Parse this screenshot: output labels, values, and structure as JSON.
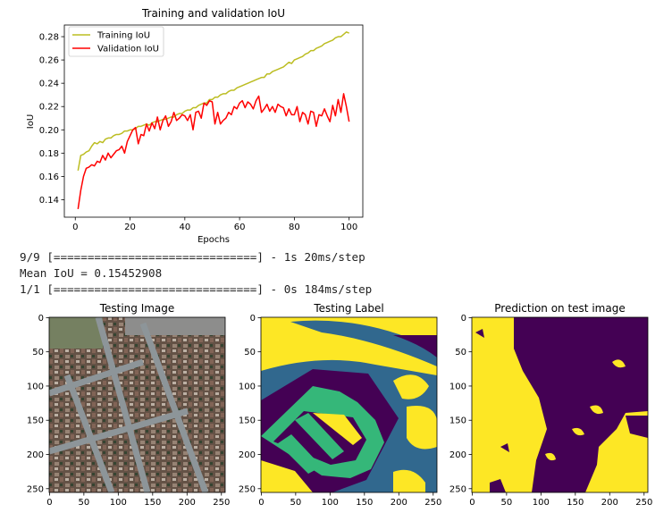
{
  "console": {
    "line1": "9/9 [==============================] - 1s 20ms/step",
    "line2": "Mean IoU = 0.15452908",
    "line3": "1/1 [==============================] - 0s 184ms/step"
  },
  "chart_data": [
    {
      "type": "line",
      "title": "Training and validation IoU",
      "xlabel": "Epochs",
      "ylabel": "IoU",
      "xlim": [
        -4,
        105
      ],
      "ylim": [
        0.125,
        0.29
      ],
      "xticks": [
        0,
        20,
        40,
        60,
        80,
        100
      ],
      "yticks": [
        0.14,
        0.16,
        0.18,
        0.2,
        0.22,
        0.24,
        0.26,
        0.28
      ],
      "grid": false,
      "legend": "top-left",
      "series": [
        {
          "name": "Training IoU",
          "color": "#bcbd22",
          "x": [
            1,
            2,
            3,
            4,
            5,
            6,
            7,
            8,
            9,
            10,
            11,
            12,
            13,
            14,
            15,
            16,
            17,
            18,
            19,
            20,
            21,
            22,
            23,
            24,
            25,
            26,
            27,
            28,
            29,
            30,
            31,
            32,
            33,
            34,
            35,
            36,
            37,
            38,
            39,
            40,
            41,
            42,
            43,
            44,
            45,
            46,
            47,
            48,
            49,
            50,
            51,
            52,
            53,
            54,
            55,
            56,
            57,
            58,
            59,
            60,
            61,
            62,
            63,
            64,
            65,
            66,
            67,
            68,
            69,
            70,
            71,
            72,
            73,
            74,
            75,
            76,
            77,
            78,
            79,
            80,
            81,
            82,
            83,
            84,
            85,
            86,
            87,
            88,
            89,
            90,
            91,
            92,
            93,
            94,
            95,
            96,
            97,
            98,
            99,
            100
          ],
          "values": [
            0.165,
            0.178,
            0.179,
            0.181,
            0.182,
            0.186,
            0.189,
            0.188,
            0.19,
            0.189,
            0.192,
            0.193,
            0.193,
            0.195,
            0.196,
            0.196,
            0.197,
            0.199,
            0.199,
            0.2,
            0.2,
            0.201,
            0.203,
            0.203,
            0.204,
            0.205,
            0.204,
            0.206,
            0.207,
            0.207,
            0.208,
            0.209,
            0.209,
            0.21,
            0.211,
            0.211,
            0.213,
            0.214,
            0.214,
            0.216,
            0.217,
            0.217,
            0.219,
            0.219,
            0.221,
            0.222,
            0.223,
            0.223,
            0.226,
            0.226,
            0.228,
            0.228,
            0.23,
            0.231,
            0.231,
            0.233,
            0.234,
            0.234,
            0.236,
            0.237,
            0.238,
            0.239,
            0.24,
            0.241,
            0.242,
            0.243,
            0.244,
            0.245,
            0.245,
            0.248,
            0.248,
            0.25,
            0.251,
            0.252,
            0.253,
            0.254,
            0.256,
            0.258,
            0.257,
            0.26,
            0.261,
            0.262,
            0.263,
            0.265,
            0.266,
            0.268,
            0.268,
            0.27,
            0.271,
            0.272,
            0.274,
            0.275,
            0.276,
            0.277,
            0.279,
            0.28,
            0.28,
            0.282,
            0.284,
            0.283
          ]
        },
        {
          "name": "Validation IoU",
          "color": "#ff0000",
          "x": [
            1,
            2,
            3,
            4,
            5,
            6,
            7,
            8,
            9,
            10,
            11,
            12,
            13,
            14,
            15,
            16,
            17,
            18,
            19,
            20,
            21,
            22,
            23,
            24,
            25,
            26,
            27,
            28,
            29,
            30,
            31,
            32,
            33,
            34,
            35,
            36,
            37,
            38,
            39,
            40,
            41,
            42,
            43,
            44,
            45,
            46,
            47,
            48,
            49,
            50,
            51,
            52,
            53,
            54,
            55,
            56,
            57,
            58,
            59,
            60,
            61,
            62,
            63,
            64,
            65,
            66,
            67,
            68,
            69,
            70,
            71,
            72,
            73,
            74,
            75,
            76,
            77,
            78,
            79,
            80,
            81,
            82,
            83,
            84,
            85,
            86,
            87,
            88,
            89,
            90,
            91,
            92,
            93,
            94,
            95,
            96,
            97,
            98,
            99,
            100
          ],
          "values": [
            0.132,
            0.148,
            0.16,
            0.167,
            0.168,
            0.17,
            0.169,
            0.173,
            0.172,
            0.178,
            0.174,
            0.18,
            0.176,
            0.179,
            0.182,
            0.183,
            0.186,
            0.18,
            0.19,
            0.195,
            0.2,
            0.202,
            0.188,
            0.196,
            0.195,
            0.205,
            0.199,
            0.206,
            0.201,
            0.211,
            0.2,
            0.208,
            0.212,
            0.203,
            0.207,
            0.215,
            0.208,
            0.21,
            0.213,
            0.212,
            0.208,
            0.213,
            0.2,
            0.215,
            0.216,
            0.21,
            0.223,
            0.221,
            0.225,
            0.224,
            0.205,
            0.215,
            0.205,
            0.208,
            0.21,
            0.215,
            0.213,
            0.22,
            0.218,
            0.223,
            0.225,
            0.219,
            0.224,
            0.222,
            0.218,
            0.225,
            0.229,
            0.215,
            0.218,
            0.222,
            0.216,
            0.22,
            0.215,
            0.222,
            0.22,
            0.219,
            0.212,
            0.218,
            0.213,
            0.213,
            0.22,
            0.207,
            0.215,
            0.213,
            0.205,
            0.216,
            0.215,
            0.203,
            0.213,
            0.212,
            0.218,
            0.212,
            0.207,
            0.221,
            0.212,
            0.226,
            0.215,
            0.231,
            0.22,
            0.207
          ]
        }
      ]
    },
    {
      "type": "heatmap",
      "title": "Testing Image",
      "xticks": [
        0,
        50,
        100,
        150,
        200,
        250
      ],
      "yticks": [
        0,
        50,
        100,
        150,
        200,
        250
      ],
      "xlim": [
        0,
        256
      ],
      "ylim": [
        256,
        0
      ]
    },
    {
      "type": "heatmap",
      "title": "Testing Label",
      "xticks": [
        0,
        50,
        100,
        150,
        200,
        250
      ],
      "yticks": [
        0,
        50,
        100,
        150,
        200,
        250
      ],
      "xlim": [
        0,
        256
      ],
      "ylim": [
        256,
        0
      ],
      "colors": [
        "#440154",
        "#31688e",
        "#35b779",
        "#fde725"
      ]
    },
    {
      "type": "heatmap",
      "title": "Prediction on test image",
      "xticks": [
        0,
        50,
        100,
        150,
        200,
        250
      ],
      "yticks": [
        0,
        50,
        100,
        150,
        200,
        250
      ],
      "xlim": [
        0,
        256
      ],
      "ylim": [
        256,
        0
      ],
      "colors": [
        "#440154",
        "#fde725"
      ]
    }
  ]
}
